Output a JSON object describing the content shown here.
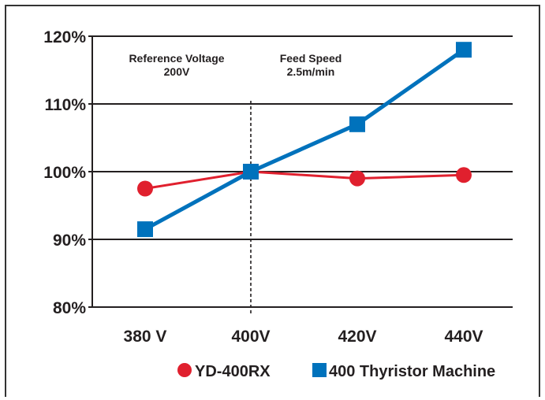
{
  "chart_data": {
    "type": "line",
    "categories": [
      "380 V",
      "400V",
      "420V",
      "440V"
    ],
    "y_ticks": [
      "80%",
      "90%",
      "100%",
      "110%",
      "120%"
    ],
    "ylim": [
      80,
      120
    ],
    "grid": "horizontal",
    "legend_placement": "bottom",
    "annotations": [
      {
        "line1": "Reference Voltage",
        "line2": "200V"
      },
      {
        "line1": "Feed Speed",
        "line2": "2.5m/min"
      }
    ],
    "reference_line_category": "400V",
    "series": [
      {
        "name": "YD-400RX",
        "values": [
          97.5,
          100,
          99,
          99.5
        ],
        "color": "#e0202e",
        "marker": "circle"
      },
      {
        "name": "400 Thyristor Machine",
        "values": [
          91.5,
          100,
          107,
          118
        ],
        "color": "#0072bc",
        "marker": "square"
      }
    ]
  }
}
